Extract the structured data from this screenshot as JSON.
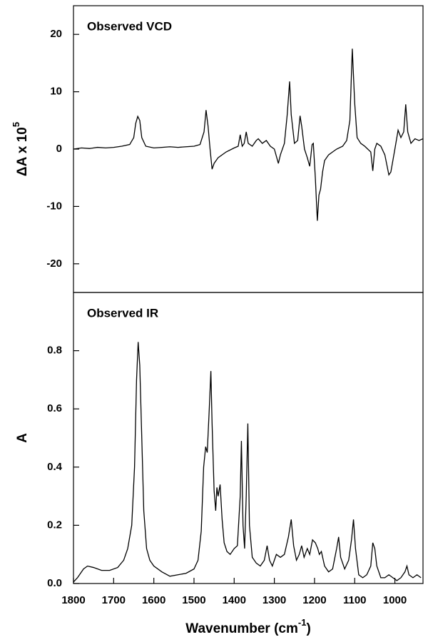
{
  "chart_data": [
    {
      "type": "line",
      "title": "Observed VCD",
      "ylabel": "ΔA x 10",
      "ylabel_superscript": "5",
      "xlim": [
        1800,
        930
      ],
      "ylim": [
        -25,
        25
      ],
      "yticks": [
        -20,
        -10,
        0,
        10,
        20
      ],
      "color": "#000000",
      "x": [
        1800,
        1780,
        1760,
        1740,
        1720,
        1700,
        1680,
        1660,
        1650,
        1645,
        1640,
        1635,
        1630,
        1620,
        1600,
        1580,
        1560,
        1540,
        1520,
        1500,
        1485,
        1475,
        1470,
        1465,
        1460,
        1455,
        1450,
        1440,
        1420,
        1400,
        1390,
        1385,
        1380,
        1375,
        1370,
        1365,
        1355,
        1345,
        1340,
        1330,
        1320,
        1310,
        1300,
        1290,
        1285,
        1275,
        1268,
        1262,
        1258,
        1250,
        1242,
        1236,
        1232,
        1225,
        1218,
        1212,
        1206,
        1203,
        1198,
        1193,
        1189,
        1185,
        1180,
        1175,
        1165,
        1155,
        1145,
        1130,
        1120,
        1112,
        1106,
        1100,
        1094,
        1085,
        1075,
        1060,
        1055,
        1050,
        1045,
        1035,
        1025,
        1015,
        1010,
        1000,
        992,
        985,
        978,
        973,
        968,
        960,
        950,
        940,
        930
      ],
      "values": [
        0,
        0.2,
        0.1,
        0.3,
        0.2,
        0.3,
        0.5,
        0.8,
        2,
        4.5,
        5.7,
        5,
        2,
        0.5,
        0.2,
        0.3,
        0.4,
        0.3,
        0.4,
        0.5,
        0.8,
        3,
        6.8,
        4,
        0,
        -3.5,
        -2.5,
        -1.5,
        -0.5,
        0.2,
        0.5,
        2.5,
        0.5,
        1,
        3,
        1,
        0.5,
        1.5,
        1.8,
        1,
        1.5,
        0.5,
        0,
        -2.5,
        -1,
        1,
        6,
        11.8,
        6,
        1,
        1.5,
        5.8,
        4,
        0,
        -1.5,
        -3,
        0.8,
        1,
        -5,
        -12.5,
        -8,
        -7,
        -4,
        -2,
        -1,
        -0.5,
        0,
        0.5,
        1.5,
        5,
        17.5,
        8,
        2,
        1,
        0.5,
        -0.5,
        -3.8,
        0,
        1,
        0.5,
        -1,
        -4.5,
        -4,
        0,
        3.3,
        2,
        3,
        7.8,
        3,
        1,
        1.8,
        1.5,
        1.8
      ]
    },
    {
      "type": "line",
      "title": "Observed IR",
      "ylabel": "A",
      "xlabel": "Wavenumber (cm",
      "xlabel_superscript": "-1",
      "xlabel_suffix": ")",
      "xlim": [
        1800,
        930
      ],
      "xticks": [
        1800,
        1700,
        1600,
        1500,
        1400,
        1300,
        1200,
        1100,
        1000
      ],
      "ylim": [
        0,
        1.0
      ],
      "yticks": [
        {
          "value": 0,
          "label": "0.0"
        },
        0.2,
        0.4,
        0.6,
        0.8
      ],
      "color": "#000000",
      "x": [
        1800,
        1790,
        1775,
        1765,
        1750,
        1730,
        1710,
        1690,
        1675,
        1665,
        1655,
        1648,
        1643,
        1639,
        1635,
        1630,
        1625,
        1618,
        1610,
        1600,
        1580,
        1560,
        1540,
        1520,
        1500,
        1490,
        1482,
        1476,
        1471,
        1467,
        1462,
        1458,
        1455,
        1450,
        1446,
        1443,
        1440,
        1435,
        1430,
        1425,
        1418,
        1410,
        1400,
        1392,
        1385,
        1382,
        1378,
        1374,
        1370,
        1366,
        1362,
        1355,
        1345,
        1335,
        1325,
        1318,
        1312,
        1305,
        1295,
        1285,
        1275,
        1265,
        1258,
        1252,
        1245,
        1238,
        1232,
        1226,
        1218,
        1212,
        1205,
        1198,
        1192,
        1188,
        1183,
        1175,
        1165,
        1155,
        1145,
        1140,
        1135,
        1125,
        1115,
        1108,
        1103,
        1098,
        1090,
        1080,
        1070,
        1060,
        1055,
        1050,
        1045,
        1035,
        1025,
        1015,
        1005,
        995,
        985,
        975,
        970,
        965,
        955,
        945,
        935
      ],
      "values": [
        0.005,
        0.02,
        0.05,
        0.06,
        0.055,
        0.045,
        0.045,
        0.055,
        0.08,
        0.12,
        0.2,
        0.4,
        0.7,
        0.83,
        0.75,
        0.5,
        0.25,
        0.12,
        0.08,
        0.06,
        0.04,
        0.025,
        0.03,
        0.035,
        0.05,
        0.08,
        0.18,
        0.4,
        0.47,
        0.45,
        0.6,
        0.73,
        0.55,
        0.32,
        0.25,
        0.33,
        0.3,
        0.34,
        0.22,
        0.14,
        0.11,
        0.1,
        0.12,
        0.13,
        0.3,
        0.49,
        0.2,
        0.12,
        0.3,
        0.55,
        0.2,
        0.09,
        0.07,
        0.06,
        0.08,
        0.13,
        0.08,
        0.06,
        0.1,
        0.09,
        0.1,
        0.16,
        0.22,
        0.13,
        0.08,
        0.1,
        0.13,
        0.09,
        0.12,
        0.1,
        0.15,
        0.14,
        0.12,
        0.1,
        0.11,
        0.06,
        0.04,
        0.05,
        0.12,
        0.16,
        0.09,
        0.05,
        0.08,
        0.15,
        0.22,
        0.12,
        0.03,
        0.02,
        0.03,
        0.06,
        0.14,
        0.12,
        0.06,
        0.02,
        0.02,
        0.03,
        0.02,
        0.01,
        0.02,
        0.04,
        0.06,
        0.03,
        0.02,
        0.03,
        0.02
      ]
    }
  ]
}
